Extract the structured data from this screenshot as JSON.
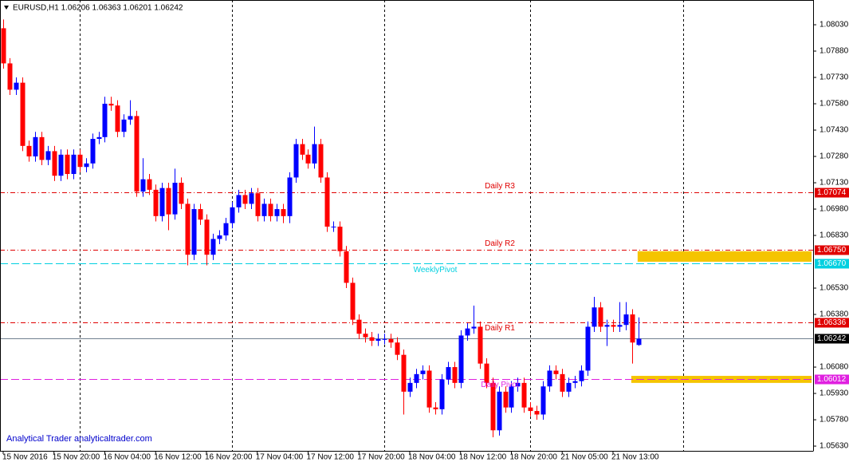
{
  "chart_data": {
    "type": "candlestick",
    "title": "EURUSD,H1  1.06206 1.06363 1.06201 1.06242",
    "watermark": "Analytical Trader analyticaltrader.com",
    "up_color": "#0000ff",
    "down_color": "#ff0000",
    "ylim": [
      1.05603,
      1.08171
    ],
    "xlim": [
      -0.5,
      127
    ],
    "yticks": [
      {
        "value": 1.0803,
        "label": "1.08030"
      },
      {
        "value": 1.0788,
        "label": "1.07880"
      },
      {
        "value": 1.0773,
        "label": "1.07730"
      },
      {
        "value": 1.0758,
        "label": "1.07580"
      },
      {
        "value": 1.0743,
        "label": "1.07430"
      },
      {
        "value": 1.0728,
        "label": "1.07280"
      },
      {
        "value": 1.0713,
        "label": "1.07130"
      },
      {
        "value": 1.0698,
        "label": "1.06980"
      },
      {
        "value": 1.0683,
        "label": "1.06830"
      },
      {
        "value": 1.0653,
        "label": "1.06530"
      },
      {
        "value": 1.0638,
        "label": "1.06380"
      },
      {
        "value": 1.0608,
        "label": "1.06080"
      },
      {
        "value": 1.0593,
        "label": "1.05930"
      },
      {
        "value": 1.0578,
        "label": "1.05780"
      },
      {
        "value": 1.0563,
        "label": "1.05630"
      }
    ],
    "xticks": [
      {
        "value": 0,
        "label": "15 Nov 2016"
      },
      {
        "value": 8,
        "label": "15 Nov 20:00"
      },
      {
        "value": 16,
        "label": "16 Nov 04:00"
      },
      {
        "value": 24,
        "label": "16 Nov 12:00"
      },
      {
        "value": 32,
        "label": "16 Nov 20:00"
      },
      {
        "value": 40,
        "label": "17 Nov 04:00"
      },
      {
        "value": 48,
        "label": "17 Nov 12:00"
      },
      {
        "value": 56,
        "label": "17 Nov 20:00"
      },
      {
        "value": 64,
        "label": "18 Nov 04:00"
      },
      {
        "value": 72,
        "label": "18 Nov 12:00"
      },
      {
        "value": 80,
        "label": "18 Nov 20:00"
      },
      {
        "value": 88,
        "label": "21 Nov 05:00"
      },
      {
        "value": 96,
        "label": "21 Nov 13:00"
      }
    ],
    "vgrid": [
      12,
      36,
      60,
      83,
      107
    ],
    "opens": [
      1.0801,
      1.0781,
      1.0766,
      1.077,
      1.0734,
      1.0728,
      1.0739,
      1.0726,
      1.0731,
      1.0717,
      1.0729,
      1.0718,
      1.0729,
      1.0722,
      1.0724,
      1.0738,
      1.0739,
      1.0758,
      1.0757,
      1.0742,
      1.0749,
      1.0751,
      1.0708,
      1.0715,
      1.0709,
      1.0694,
      1.071,
      1.0695,
      1.0713,
      1.0701,
      1.0672,
      1.0698,
      1.0692,
      1.0672,
      1.0681,
      1.0683,
      1.069,
      1.0699,
      1.0706,
      1.0701,
      1.0707,
      1.0694,
      1.0701,
      1.0694,
      1.0698,
      1.0694,
      1.0716,
      1.0735,
      1.0729,
      1.0724,
      1.0735,
      1.0716,
      1.0688,
      1.0688,
      1.0674,
      1.0656,
      1.0635,
      1.0627,
      1.0625,
      1.0623,
      1.0624,
      1.0624,
      1.0622,
      1.0615,
      1.0594,
      1.0599,
      1.0604,
      1.0606,
      1.0585,
      1.0584,
      1.0601,
      1.0608,
      1.0599,
      1.0626,
      1.063,
      1.0631,
      1.061,
      1.0599,
      1.0572,
      1.0594,
      1.0585,
      1.0597,
      1.0599,
      1.0585,
      1.0583,
      1.0581,
      1.0597,
      1.0606,
      1.0604,
      1.0594,
      1.0599,
      1.06,
      1.0606,
      1.0631,
      1.0642,
      1.0631,
      1.0632,
      1.0631,
      1.0632,
      1.0638,
      1.06206
    ],
    "highs": [
      1.0806,
      1.0784,
      1.0773,
      1.0773,
      1.0737,
      1.0742,
      1.0742,
      1.0734,
      1.0734,
      1.0732,
      1.0732,
      1.0732,
      1.0732,
      1.0727,
      1.0741,
      1.0742,
      1.0762,
      1.0762,
      1.076,
      1.0752,
      1.076,
      1.0754,
      1.0727,
      1.0718,
      1.0712,
      1.0713,
      1.0713,
      1.0721,
      1.0716,
      1.0704,
      1.0701,
      1.0701,
      1.0695,
      1.0684,
      1.0686,
      1.0693,
      1.0702,
      1.0709,
      1.0709,
      1.071,
      1.071,
      1.0704,
      1.0704,
      1.0701,
      1.0701,
      1.0719,
      1.0738,
      1.0738,
      1.0732,
      1.0745,
      1.0738,
      1.0719,
      1.0691,
      1.0691,
      1.0677,
      1.0659,
      1.0638,
      1.063,
      1.0628,
      1.0627,
      1.0627,
      1.0627,
      1.0625,
      1.0618,
      1.0602,
      1.0607,
      1.0609,
      1.0609,
      1.0588,
      1.0604,
      1.0611,
      1.0611,
      1.0629,
      1.0633,
      1.0643,
      1.0634,
      1.0613,
      1.0602,
      1.0597,
      1.0597,
      1.06,
      1.0602,
      1.0602,
      1.0588,
      1.0586,
      1.06,
      1.0609,
      1.0609,
      1.0607,
      1.0602,
      1.0603,
      1.0609,
      1.0634,
      1.0648,
      1.0645,
      1.0635,
      1.0635,
      1.0645,
      1.0645,
      1.0641,
      1.06363
    ],
    "lows": [
      1.0778,
      1.0763,
      1.0763,
      1.0731,
      1.0725,
      1.0725,
      1.0723,
      1.0723,
      1.0714,
      1.0714,
      1.0715,
      1.0715,
      1.0719,
      1.0719,
      1.0721,
      1.0735,
      1.0736,
      1.0754,
      1.0739,
      1.0739,
      1.0746,
      1.0705,
      1.0705,
      1.0706,
      1.0691,
      1.0691,
      1.0686,
      1.0692,
      1.0698,
      1.0666,
      1.0669,
      1.0689,
      1.0666,
      1.0669,
      1.0678,
      1.068,
      1.0687,
      1.0696,
      1.0698,
      1.0698,
      1.0691,
      1.0691,
      1.0691,
      1.0691,
      1.069,
      1.069,
      1.0713,
      1.0726,
      1.0721,
      1.0721,
      1.0713,
      1.0685,
      1.0685,
      1.0671,
      1.0653,
      1.0632,
      1.0624,
      1.0622,
      1.062,
      1.062,
      1.0621,
      1.0619,
      1.0612,
      1.0581,
      1.0591,
      1.0596,
      1.0601,
      1.0582,
      1.0581,
      1.0581,
      1.0598,
      1.0596,
      1.0596,
      1.0623,
      1.0627,
      1.0607,
      1.0596,
      1.0568,
      1.0569,
      1.0582,
      1.0582,
      1.0594,
      1.0582,
      1.058,
      1.0578,
      1.0578,
      1.0594,
      1.0601,
      1.0591,
      1.0591,
      1.0596,
      1.0597,
      1.0603,
      1.0628,
      1.0628,
      1.062,
      1.0628,
      1.0628,
      1.0629,
      1.061,
      1.06201
    ],
    "closes": [
      1.0781,
      1.0766,
      1.077,
      1.0734,
      1.0728,
      1.0739,
      1.0726,
      1.0731,
      1.0717,
      1.0729,
      1.0718,
      1.0729,
      1.0722,
      1.0724,
      1.0738,
      1.0739,
      1.0758,
      1.0757,
      1.0742,
      1.0749,
      1.0751,
      1.0708,
      1.0715,
      1.0709,
      1.0694,
      1.071,
      1.0695,
      1.0713,
      1.0701,
      1.0672,
      1.0698,
      1.0692,
      1.0672,
      1.0681,
      1.0683,
      1.069,
      1.0699,
      1.0706,
      1.0701,
      1.0707,
      1.0694,
      1.0701,
      1.0694,
      1.0698,
      1.0694,
      1.0716,
      1.0735,
      1.0729,
      1.0724,
      1.0735,
      1.0716,
      1.0688,
      1.0688,
      1.0674,
      1.0656,
      1.0635,
      1.0627,
      1.0625,
      1.0623,
      1.0624,
      1.0624,
      1.0622,
      1.0615,
      1.0594,
      1.0599,
      1.0604,
      1.0606,
      1.0585,
      1.0584,
      1.0601,
      1.0608,
      1.0599,
      1.0626,
      1.063,
      1.0631,
      1.061,
      1.0599,
      1.0572,
      1.0594,
      1.0585,
      1.0597,
      1.0599,
      1.0585,
      1.0583,
      1.0581,
      1.0597,
      1.0606,
      1.0604,
      1.0594,
      1.0599,
      1.06,
      1.0606,
      1.0631,
      1.0642,
      1.0631,
      1.0632,
      1.0631,
      1.0632,
      1.0638,
      1.0622,
      1.06242
    ],
    "levels": [
      {
        "name": "Daily R3",
        "value": 1.07074,
        "value_label": "1.07074",
        "color": "#e00000",
        "style": "dashdot"
      },
      {
        "name": "Daily R2",
        "value": 1.0675,
        "value_label": "1.06750",
        "color": "#e00000",
        "style": "dashdot"
      },
      {
        "name": "WeeklyPivot",
        "value": 1.0667,
        "value_label": "1.06670",
        "color": "#00d0e0",
        "style": "dashed"
      },
      {
        "name": "Daily R1",
        "value": 1.06336,
        "value_label": "1.06336",
        "color": "#e00000",
        "style": "dashdot"
      },
      {
        "value": 1.06242,
        "value_label": "1.06242",
        "color": "#708090",
        "style": "solid"
      },
      {
        "name": "Daily Pivot",
        "value": 1.06012,
        "value_label": "1.06012",
        "color": "#e020e0",
        "style": "dashed"
      }
    ],
    "zones": [
      {
        "start": 100,
        "from": 1.0668,
        "to": 1.0674,
        "color": "#f5c400"
      },
      {
        "start": 99,
        "from": 1.0599,
        "to": 1.0603,
        "color": "#f5c400"
      }
    ]
  }
}
